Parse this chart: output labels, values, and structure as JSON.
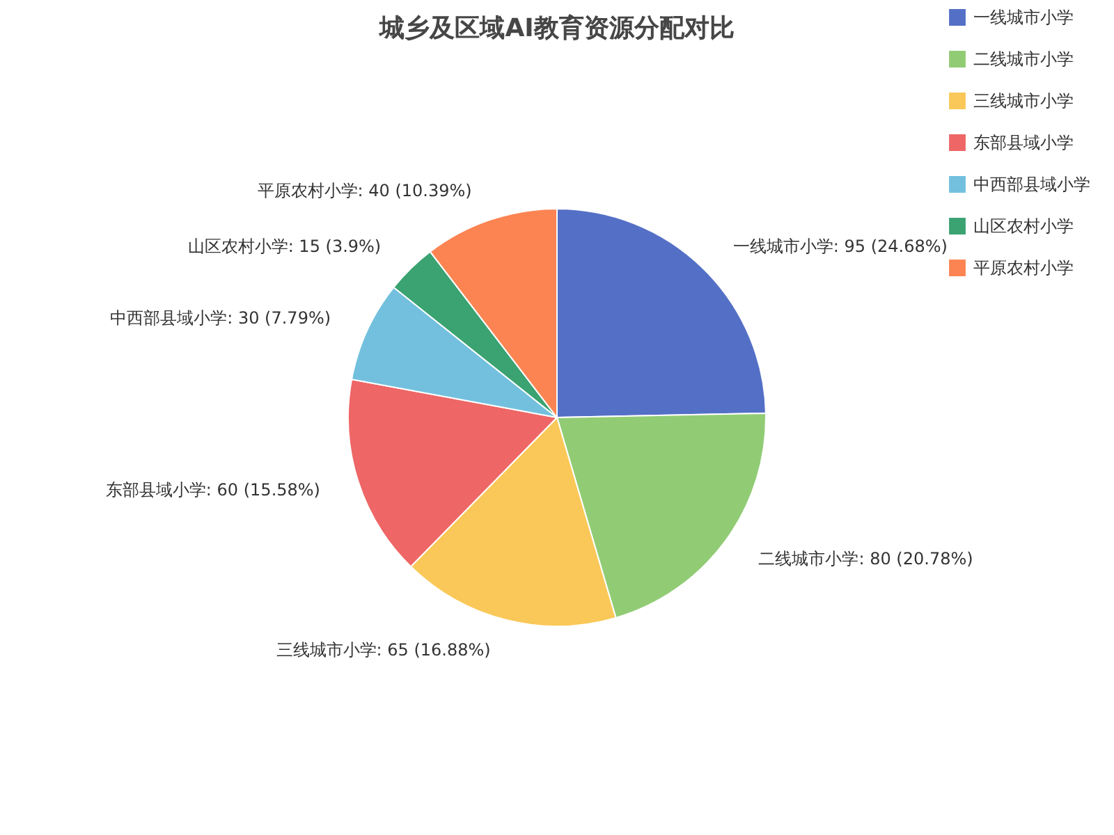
{
  "chart_data": {
    "type": "pie",
    "title": "城乡及区域AI教育资源分配对比",
    "categories": [
      "一线城市小学",
      "二线城市小学",
      "三线城市小学",
      "东部县域小学",
      "中西部县域小学",
      "山区农村小学",
      "平原农村小学"
    ],
    "values": [
      95,
      80,
      65,
      60,
      30,
      15,
      40
    ],
    "colors": [
      "#5470c6",
      "#91cc75",
      "#fac858",
      "#ee6666",
      "#73c0de",
      "#3ba272",
      "#fc8452"
    ],
    "value_labels": [
      "一线城市小学: 95 (24.68%)",
      "二线城市小学: 80 (20.78%)",
      "三线城市小学: 65 (16.88%)",
      "东部县域小学: 60 (15.58%)",
      "中西部县域小学: 30 (7.79%)",
      "山区农村小学: 15 (3.9%)",
      "平原农村小学: 40 (10.39%)"
    ],
    "legend": "top right"
  }
}
